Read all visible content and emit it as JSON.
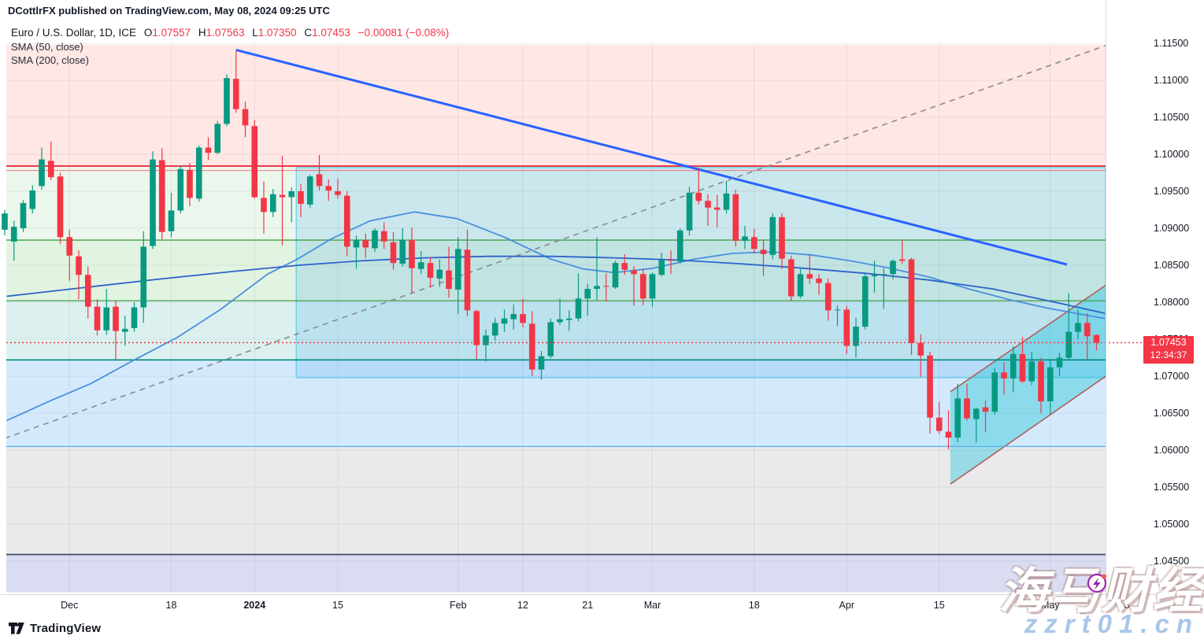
{
  "meta": {
    "published": "DCottlrFX published on TradingView.com, May 08, 2024 09:25 UTC",
    "watermark_line1": "海马财经",
    "watermark_line2": "zzrt01.cn"
  },
  "logo": {
    "text": "TradingView"
  },
  "legend": {
    "symbol": "Euro / U.S. Dollar, 1D, ICE",
    "o_label": "O",
    "o": "1.07557",
    "h_label": "H",
    "h": "1.07563",
    "l_label": "L",
    "l": "1.07350",
    "c_label": "C",
    "c": "1.07453",
    "change": "−0.00081 (−0.08%)",
    "sma50": "SMA (50, close)",
    "sma200": "SMA (200, close)"
  },
  "axis": {
    "price_ticks": [
      "1.11500",
      "1.11000",
      "1.10500",
      "1.10000",
      "1.09500",
      "1.09000",
      "1.08500",
      "1.08000",
      "1.07500",
      "1.07000",
      "1.06500",
      "1.06000",
      "1.05500",
      "1.05000",
      "1.04500"
    ],
    "time_labels": [
      {
        "label": "Dec",
        "i": 7,
        "bold": false
      },
      {
        "label": "18",
        "i": 18,
        "bold": false
      },
      {
        "label": "2024",
        "i": 27,
        "bold": true
      },
      {
        "label": "15",
        "i": 36,
        "bold": false
      },
      {
        "label": "Feb",
        "i": 49,
        "bold": false
      },
      {
        "label": "12",
        "i": 56,
        "bold": false
      },
      {
        "label": "21",
        "i": 63,
        "bold": false
      },
      {
        "label": "Mar",
        "i": 70,
        "bold": false
      },
      {
        "label": "18",
        "i": 81,
        "bold": false
      },
      {
        "label": "Apr",
        "i": 91,
        "bold": false
      },
      {
        "label": "15",
        "i": 101,
        "bold": false
      },
      {
        "label": "May",
        "i": 113,
        "bold": false
      },
      {
        "label": "13",
        "i": 121,
        "bold": false
      }
    ],
    "price_tag": {
      "price": "1.07453",
      "countdown": "12:34:37"
    }
  },
  "chart_data": {
    "type": "candlestick",
    "symbol": "EUR/USD",
    "timeframe": "1D",
    "exchange": "ICE",
    "y_axis": {
      "min": 1.0408,
      "max": 1.1148,
      "tick_step": 0.005
    },
    "colors": {
      "up": "#089981",
      "down": "#f23645",
      "grid": "rgba(42,46,57,0.08)"
    },
    "candles": {
      "fields": [
        "open",
        "high",
        "low",
        "close"
      ],
      "start_date": "2023-11-22",
      "values": [
        [
          1.0898,
          1.0925,
          1.089,
          1.092
        ],
        [
          1.0882,
          1.091,
          1.0856,
          1.0902
        ],
        [
          1.09,
          1.0938,
          1.0895,
          1.0934
        ],
        [
          1.0926,
          1.0958,
          1.092,
          1.0951
        ],
        [
          1.0957,
          1.1009,
          1.0952,
          1.0993
        ],
        [
          1.0991,
          1.1017,
          1.0965,
          1.0969
        ],
        [
          1.097,
          1.0975,
          1.0879,
          1.0888
        ],
        [
          1.0888,
          1.0898,
          1.0829,
          1.0863
        ],
        [
          1.0862,
          1.087,
          1.0804,
          1.0837
        ],
        [
          1.0837,
          1.0848,
          1.0778,
          1.0794
        ],
        [
          1.0794,
          1.0804,
          1.0755,
          1.0762
        ],
        [
          1.0762,
          1.0818,
          1.0756,
          1.0793
        ],
        [
          1.0794,
          1.0802,
          1.0723,
          1.0761
        ],
        [
          1.076,
          1.0782,
          1.0741,
          1.0764
        ],
        [
          1.0765,
          1.08,
          1.076,
          1.0793
        ],
        [
          1.0793,
          1.0896,
          1.0772,
          1.0875
        ],
        [
          1.0876,
          1.1004,
          1.0872,
          1.0993
        ],
        [
          1.0992,
          1.1008,
          1.0885,
          1.0895
        ],
        [
          1.0896,
          1.0948,
          1.0888,
          1.0924
        ],
        [
          1.0924,
          1.0985,
          1.092,
          1.098
        ],
        [
          1.0979,
          1.0988,
          1.093,
          1.0941
        ],
        [
          1.094,
          1.1012,
          1.0936,
          1.1009
        ],
        [
          1.1009,
          1.1023,
          1.0992,
          1.1002
        ],
        [
          1.1002,
          1.1045,
          1.1,
          1.1041
        ],
        [
          1.1041,
          1.1108,
          1.1038,
          1.1103
        ],
        [
          1.1102,
          1.114,
          1.1056,
          1.1061
        ],
        [
          1.1061,
          1.1071,
          1.1023,
          1.1039
        ],
        [
          1.1038,
          1.1046,
          1.094,
          1.0942
        ],
        [
          1.0941,
          1.0963,
          1.0893,
          1.0922
        ],
        [
          1.0922,
          1.0953,
          1.0915,
          1.0946
        ],
        [
          1.0945,
          1.0998,
          1.0877,
          1.0942
        ],
        [
          1.0942,
          1.0955,
          1.0908,
          1.095
        ],
        [
          1.095,
          1.096,
          1.0915,
          1.0933
        ],
        [
          1.0932,
          1.0972,
          1.0928,
          1.097
        ],
        [
          1.0973,
          1.0999,
          1.0951,
          1.0957
        ],
        [
          1.0957,
          1.0966,
          1.0937,
          1.0951
        ],
        [
          1.095,
          1.0967,
          1.094,
          1.0945
        ],
        [
          1.0944,
          1.095,
          1.0862,
          1.0875
        ],
        [
          1.0874,
          1.089,
          1.0845,
          1.0884
        ],
        [
          1.0884,
          1.0893,
          1.086,
          1.0874
        ],
        [
          1.0873,
          1.09,
          1.0868,
          1.0897
        ],
        [
          1.0896,
          1.0908,
          1.0872,
          1.0882
        ],
        [
          1.0881,
          1.0895,
          1.0844,
          1.0853
        ],
        [
          1.0852,
          1.09,
          1.0848,
          1.0884
        ],
        [
          1.0884,
          1.0901,
          1.0812,
          1.0846
        ],
        [
          1.0845,
          1.0869,
          1.0838,
          1.0854
        ],
        [
          1.0853,
          1.0861,
          1.082,
          1.0833
        ],
        [
          1.0832,
          1.0858,
          1.0821,
          1.0844
        ],
        [
          1.0843,
          1.0875,
          1.0806,
          1.0818
        ],
        [
          1.0817,
          1.0888,
          1.0784,
          1.0872
        ],
        [
          1.0871,
          1.0898,
          1.0781,
          1.0789
        ],
        [
          1.0788,
          1.079,
          1.0723,
          1.0742
        ],
        [
          1.0742,
          1.0763,
          1.072,
          1.0755
        ],
        [
          1.0755,
          1.0779,
          1.0748,
          1.0772
        ],
        [
          1.0771,
          1.079,
          1.076,
          1.0778
        ],
        [
          1.0777,
          1.0797,
          1.0763,
          1.0784
        ],
        [
          1.0784,
          1.0805,
          1.0766,
          1.0772
        ],
        [
          1.0771,
          1.0788,
          1.07,
          1.0709
        ],
        [
          1.0709,
          1.0734,
          1.0695,
          1.0727
        ],
        [
          1.0727,
          1.0778,
          1.0724,
          1.0773
        ],
        [
          1.0773,
          1.0805,
          1.0769,
          1.0777
        ],
        [
          1.0776,
          1.0789,
          1.0761,
          1.0778
        ],
        [
          1.0778,
          1.0839,
          1.0774,
          1.0805
        ],
        [
          1.0805,
          1.0825,
          1.0782,
          1.0818
        ],
        [
          1.0818,
          1.0888,
          1.0802,
          1.0822
        ],
        [
          1.0822,
          1.0839,
          1.0801,
          1.0821
        ],
        [
          1.082,
          1.0856,
          1.0818,
          1.0853
        ],
        [
          1.0853,
          1.0865,
          1.0837,
          1.0844
        ],
        [
          1.0843,
          1.0849,
          1.0795,
          1.0838
        ],
        [
          1.0838,
          1.0845,
          1.0796,
          1.0805
        ],
        [
          1.0805,
          1.084,
          1.0794,
          1.0838
        ],
        [
          1.0837,
          1.0867,
          1.0835,
          1.0857
        ],
        [
          1.0857,
          1.087,
          1.0838,
          1.0856
        ],
        [
          1.0855,
          1.09,
          1.0852,
          1.0897
        ],
        [
          1.0897,
          1.0956,
          1.089,
          1.0948
        ],
        [
          1.0948,
          1.0981,
          1.0932,
          1.0937
        ],
        [
          1.0937,
          1.0946,
          1.0903,
          1.0928
        ],
        [
          1.0928,
          1.0945,
          1.0901,
          1.0925
        ],
        [
          1.0925,
          1.0964,
          1.092,
          1.0947
        ],
        [
          1.0946,
          1.0952,
          1.0875,
          1.0883
        ],
        [
          1.0883,
          1.0903,
          1.0872,
          1.0889
        ],
        [
          1.0888,
          1.0899,
          1.0866,
          1.0872
        ],
        [
          1.0871,
          1.0885,
          1.0835,
          1.0865
        ],
        [
          1.0864,
          1.092,
          1.0858,
          1.0915
        ],
        [
          1.0915,
          1.092,
          1.0845,
          1.0859
        ],
        [
          1.0858,
          1.0863,
          1.0802,
          1.0808
        ],
        [
          1.0808,
          1.0845,
          1.0805,
          1.0838
        ],
        [
          1.0838,
          1.0865,
          1.0825,
          1.0832
        ],
        [
          1.0832,
          1.0838,
          1.081,
          1.0826
        ],
        [
          1.0826,
          1.0832,
          1.0775,
          1.0789
        ],
        [
          1.0789,
          1.0796,
          1.0768,
          1.079
        ],
        [
          1.079,
          1.0795,
          1.073,
          1.0741
        ],
        [
          1.0741,
          1.0779,
          1.0725,
          1.0767
        ],
        [
          1.0767,
          1.0839,
          1.0763,
          1.0835
        ],
        [
          1.0835,
          1.0856,
          1.0813,
          1.0837
        ],
        [
          1.0837,
          1.0846,
          1.0791,
          1.0838
        ],
        [
          1.0838,
          1.0858,
          1.0831,
          1.0856
        ],
        [
          1.0858,
          1.0885,
          1.0852,
          1.0856
        ],
        [
          1.0858,
          1.086,
          1.0729,
          1.0745
        ],
        [
          1.0745,
          1.0757,
          1.0699,
          1.0728
        ],
        [
          1.0728,
          1.0733,
          1.0622,
          1.0644
        ],
        [
          1.0644,
          1.0665,
          1.0622,
          1.0626
        ],
        [
          1.0625,
          1.0654,
          1.0601,
          1.0617
        ],
        [
          1.0617,
          1.069,
          1.0611,
          1.067
        ],
        [
          1.067,
          1.069,
          1.064,
          1.0643
        ],
        [
          1.0642,
          1.0657,
          1.061,
          1.0656
        ],
        [
          1.0658,
          1.0667,
          1.0624,
          1.0652
        ],
        [
          1.0652,
          1.0711,
          1.0648,
          1.0705
        ],
        [
          1.0705,
          1.0719,
          1.0675,
          1.0697
        ],
        [
          1.0697,
          1.074,
          1.0678,
          1.073
        ],
        [
          1.073,
          1.0753,
          1.0691,
          1.0693
        ],
        [
          1.0693,
          1.0733,
          1.0688,
          1.072
        ],
        [
          1.072,
          1.0725,
          1.065,
          1.0666
        ],
        [
          1.0666,
          1.0722,
          1.0649,
          1.0712
        ],
        [
          1.0712,
          1.0732,
          1.07,
          1.0725
        ],
        [
          1.0725,
          1.0812,
          1.0723,
          1.076
        ],
        [
          1.076,
          1.079,
          1.075,
          1.0772
        ],
        [
          1.0772,
          1.0785,
          1.0723,
          1.0754
        ],
        [
          1.07557,
          1.07563,
          1.0735,
          1.07453
        ]
      ]
    },
    "zones": [
      {
        "name": "supply-zone",
        "p1": 1.1148,
        "p2": 1.0984,
        "fill": "rgba(244,67,54,0.13)"
      },
      {
        "name": "upper-green-zone",
        "p1": 1.0984,
        "p2": 1.0884,
        "fill": "rgba(103,194,107,0.13)"
      },
      {
        "name": "mid-green-zone",
        "p1": 1.0884,
        "p2": 1.0802,
        "fill": "rgba(103,194,107,0.20)"
      },
      {
        "name": "teal-zone",
        "p1": 1.0802,
        "p2": 1.0722,
        "fill": "rgba(38,166,154,0.16)"
      },
      {
        "name": "demand-blue-zone",
        "p1": 1.0722,
        "p2": 1.0605,
        "fill": "rgba(100,181,246,0.28)"
      },
      {
        "name": "gray-zone",
        "p1": 1.0605,
        "p2": 1.0459,
        "fill": "rgba(128,132,142,0.17)"
      },
      {
        "name": "lavender-zone",
        "p1": 1.0459,
        "p2": 1.0408,
        "fill": "rgba(121,134,203,0.28)"
      }
    ],
    "box": {
      "name": "consolidation-box",
      "i1": 31.5,
      "i2": 119.5,
      "p1": 1.0982,
      "p2": 1.0698,
      "fill": "rgba(33,150,243,0.16)",
      "stroke": "rgba(38,198,218,0.85)"
    },
    "channel": {
      "name": "ascending-channel",
      "i1": 102.2,
      "i2": 119,
      "top_p1": 1.0679,
      "top_p2": 1.0823,
      "bot_p1": 1.0554,
      "bot_p2": 1.07,
      "fill": "rgba(38,198,218,0.42)",
      "stroke": "#b05e58"
    },
    "levels": [
      {
        "name": "resistance-line",
        "price": 1.0984,
        "color": "#f23645",
        "width": 2
      },
      {
        "name": "resistance-line-inner",
        "price": 1.0978,
        "color": "rgba(242,54,69,0.65)",
        "width": 1
      },
      {
        "name": "green-line-upper",
        "price": 1.0884,
        "color": "#43a047",
        "width": 1.3
      },
      {
        "name": "green-line-lower",
        "price": 1.0802,
        "color": "#43a047",
        "width": 1.3
      },
      {
        "name": "teal-line",
        "price": 1.0722,
        "color": "#00897b",
        "width": 1.6
      },
      {
        "name": "blue-line",
        "price": 1.0605,
        "color": "#5db3f0",
        "width": 1.3
      },
      {
        "name": "dark-line",
        "price": 1.0459,
        "color": "#4a5568",
        "width": 1.8
      }
    ],
    "current_price_line": {
      "price": 1.07453,
      "color": "#f23645"
    },
    "trendlines": [
      {
        "name": "downtrend-line",
        "from": [
          25,
          1.1141
        ],
        "to": [
          114.8,
          1.0851
        ],
        "color": "#2962ff",
        "width": 3,
        "dash": ""
      },
      {
        "name": "rising-dashed-line",
        "from": [
          0,
          1.0616
        ],
        "to": [
          119,
          1.1147
        ],
        "color": "#8a8e99",
        "width": 1.7,
        "dash": "7,6"
      }
    ],
    "smas": [
      {
        "name": "sma-50",
        "color": "#4a8fe2",
        "width": 1.8,
        "points": [
          [
            0.2,
            1.064
          ],
          [
            4.6,
            1.0665
          ],
          [
            9.3,
            1.069
          ],
          [
            14,
            1.0722
          ],
          [
            18.6,
            1.0752
          ],
          [
            23.3,
            1.079
          ],
          [
            28.4,
            1.0838
          ],
          [
            31.6,
            1.0858
          ],
          [
            35.2,
            1.0885
          ],
          [
            39.5,
            1.091
          ],
          [
            44.3,
            1.0922
          ],
          [
            48.9,
            1.0913
          ],
          [
            54,
            1.0888
          ],
          [
            59.1,
            1.0858
          ],
          [
            62.5,
            1.0845
          ],
          [
            65.9,
            1.084
          ],
          [
            70.1,
            1.0846
          ],
          [
            74.4,
            1.0858
          ],
          [
            78.6,
            1.0866
          ],
          [
            82.9,
            1.0868
          ],
          [
            87.1,
            1.0864
          ],
          [
            91.4,
            1.0856
          ],
          [
            95.7,
            1.0846
          ],
          [
            99.9,
            1.0834
          ],
          [
            104.2,
            1.0818
          ],
          [
            108.4,
            1.0804
          ],
          [
            112.7,
            1.0792
          ],
          [
            118.9,
            1.0778
          ]
        ]
      },
      {
        "name": "sma-200",
        "color": "#2e63c9",
        "width": 1.8,
        "points": [
          [
            0.2,
            1.0808
          ],
          [
            8,
            1.0819
          ],
          [
            16.5,
            1.0831
          ],
          [
            25,
            1.0842
          ],
          [
            31.8,
            1.085
          ],
          [
            38.6,
            1.0856
          ],
          [
            45.4,
            1.086
          ],
          [
            52.3,
            1.0862
          ],
          [
            59.1,
            1.0862
          ],
          [
            65.9,
            1.086
          ],
          [
            72.7,
            1.0857
          ],
          [
            79.5,
            1.0852
          ],
          [
            86.3,
            1.0846
          ],
          [
            93.1,
            1.0839
          ],
          [
            99.9,
            1.083
          ],
          [
            106.8,
            1.0818
          ],
          [
            113.5,
            1.08
          ],
          [
            118.9,
            1.0785
          ]
        ]
      }
    ]
  }
}
